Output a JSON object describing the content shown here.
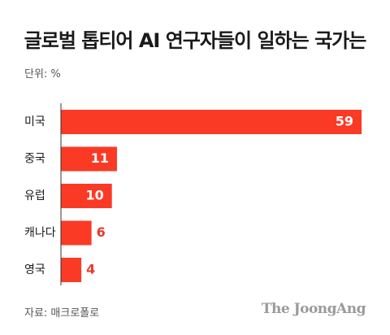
{
  "header": {
    "title": "글로벌 톱티어 AI 연구자들이 일하는 국가는",
    "unit": "단위: %"
  },
  "footer": {
    "source": "자료: 매크로폴로",
    "logo": "The JoongAng"
  },
  "colors": {
    "bar": "#fb3a26",
    "value_outside": "#e8382e",
    "axis": "#333333"
  },
  "chart_data": {
    "type": "bar",
    "orientation": "horizontal",
    "title": "글로벌 톱티어 AI 연구자들이 일하는 국가는",
    "unit": "단위: %",
    "categories": [
      "미국",
      "중국",
      "유럽",
      "캐나다",
      "영국"
    ],
    "values": [
      59,
      11,
      10,
      6,
      4
    ],
    "xlim": [
      0,
      59
    ],
    "grid": false,
    "legend": "none"
  }
}
